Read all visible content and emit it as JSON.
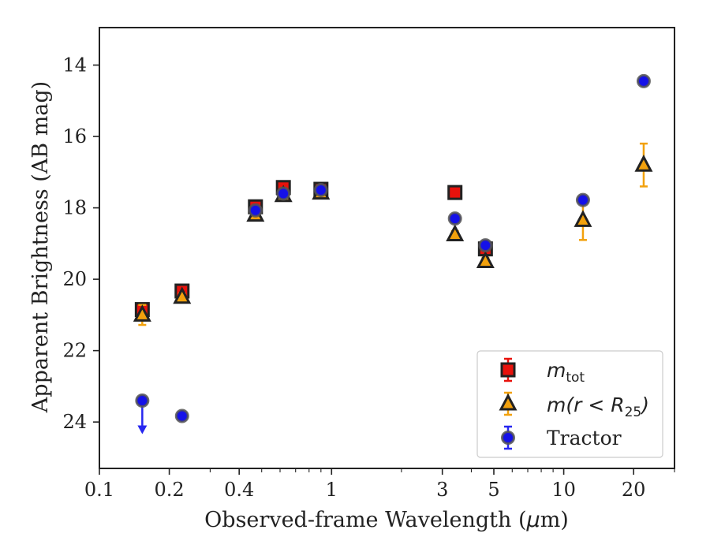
{
  "chart_data": {
    "type": "scatter",
    "xlabel_main": "Observed-frame Wavelength (",
    "xlabel_math": "μ",
    "xlabel_tail": "m)",
    "ylabel": "Apparent Brightness (AB mag)",
    "xscale": "log",
    "xlim": [
      0.1,
      30
    ],
    "ylim": [
      25.3,
      12.95
    ],
    "y_inverted": true,
    "x_ticks": [
      {
        "value": 0.1,
        "label": "0.1"
      },
      {
        "value": 0.2,
        "label": "0.2"
      },
      {
        "value": 0.4,
        "label": "0.4"
      },
      {
        "value": 1,
        "label": "1"
      },
      {
        "value": 3,
        "label": "3"
      },
      {
        "value": 5,
        "label": "5"
      },
      {
        "value": 10,
        "label": "10"
      },
      {
        "value": 20,
        "label": "20"
      }
    ],
    "y_ticks": [
      {
        "value": 14,
        "label": "14"
      },
      {
        "value": 16,
        "label": "16"
      },
      {
        "value": 18,
        "label": "18"
      },
      {
        "value": 20,
        "label": "20"
      },
      {
        "value": 22,
        "label": "22"
      },
      {
        "value": 24,
        "label": "24"
      }
    ],
    "legend_position": "lower-right",
    "series": [
      {
        "key": "mtot",
        "legend_math": "m",
        "legend_sub": "tot",
        "marker": "square",
        "color": "#e8120c",
        "edgecolor": "#222222",
        "errcolor": "#e8120c",
        "points": [
          {
            "x": 0.153,
            "y": 20.85,
            "err": 0.15
          },
          {
            "x": 0.227,
            "y": 20.33,
            "err": 0.1
          },
          {
            "x": 0.47,
            "y": 17.97,
            "err": 0.1
          },
          {
            "x": 0.62,
            "y": 17.43,
            "err": 0.1
          },
          {
            "x": 0.9,
            "y": 17.48,
            "err": 0.1
          },
          {
            "x": 3.4,
            "y": 17.57,
            "err": 0.08
          },
          {
            "x": 4.6,
            "y": 19.15,
            "err": 0.12
          }
        ]
      },
      {
        "key": "mr25",
        "legend_math": "m(r < R",
        "legend_sub": "25",
        "legend_tail": ")",
        "marker": "triangle",
        "color": "#f2a10d",
        "edgecolor": "#222222",
        "errcolor": "#f2a10d",
        "points": [
          {
            "x": 0.153,
            "y": 21.0,
            "err": 0.28
          },
          {
            "x": 0.227,
            "y": 20.5,
            "err": 0.1
          },
          {
            "x": 0.47,
            "y": 18.2,
            "err": 0.1
          },
          {
            "x": 0.62,
            "y": 17.65,
            "err": 0.1
          },
          {
            "x": 0.9,
            "y": 17.58,
            "err": 0.1
          },
          {
            "x": 3.4,
            "y": 18.75,
            "err": 0.1
          },
          {
            "x": 4.6,
            "y": 19.5,
            "err": 0.1
          },
          {
            "x": 12.1,
            "y": 18.35,
            "err": 0.55
          },
          {
            "x": 22.1,
            "y": 16.8,
            "err": 0.6
          }
        ]
      },
      {
        "key": "tractor",
        "legend_text": "Tractor",
        "marker": "circle",
        "color": "#1511e8",
        "edgecolor": "#555555",
        "errcolor": "#2727f0",
        "points": [
          {
            "x": 0.153,
            "y": 23.4,
            "err": 0,
            "upper_limit": true
          },
          {
            "x": 0.227,
            "y": 23.83,
            "err": 0.05
          },
          {
            "x": 0.47,
            "y": 18.07,
            "err": 0.05
          },
          {
            "x": 0.62,
            "y": 17.6,
            "err": 0.05
          },
          {
            "x": 0.9,
            "y": 17.5,
            "err": 0.05
          },
          {
            "x": 3.4,
            "y": 18.3,
            "err": 0.05
          },
          {
            "x": 4.6,
            "y": 19.05,
            "err": 0.05
          },
          {
            "x": 12.1,
            "y": 17.78,
            "err": 0.05
          },
          {
            "x": 22.1,
            "y": 14.45,
            "err": 0.05
          }
        ]
      }
    ]
  }
}
